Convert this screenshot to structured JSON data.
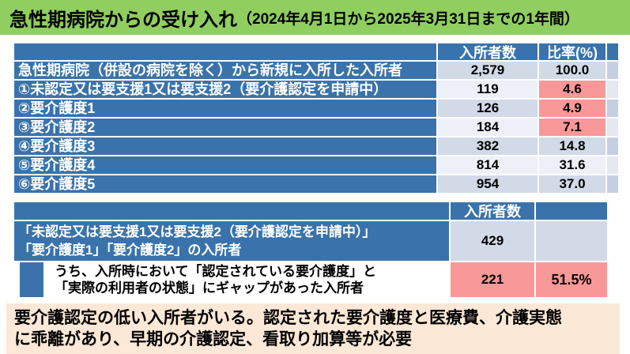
{
  "colors": {
    "green": "#8FCE5F",
    "blue": "#3A73AB",
    "pink": "#F99898",
    "band_dark": "#D2D9E7",
    "band_light": "#EDF0F6",
    "tail_dark": "#C6CFE1",
    "tail_light": "#E3E8F1",
    "peach": "#FCE8D6"
  },
  "title": {
    "main": "急性期病院からの受け入れ",
    "period": "（2024年4月1日から2025年3月31日までの1年間）"
  },
  "table1": {
    "headers": {
      "count": "入所者数",
      "ratio": "比率(%)"
    },
    "rows": [
      {
        "label": "急性期病院（併設の病院を除く）から新規に入所した入所者",
        "count": "2,579",
        "ratio": "100.0",
        "highlight": false
      },
      {
        "label": "①未認定又は要支援1又は要支援2（要介護認定を申請中）",
        "count": "119",
        "ratio": "4.6",
        "highlight": true
      },
      {
        "label": "②要介護度1",
        "count": "126",
        "ratio": "4.9",
        "highlight": true
      },
      {
        "label": "③要介護度2",
        "count": "184",
        "ratio": "7.1",
        "highlight": true
      },
      {
        "label": "④要介護度3",
        "count": "382",
        "ratio": "14.8",
        "highlight": false
      },
      {
        "label": "⑤要介護度4",
        "count": "814",
        "ratio": "31.6",
        "highlight": false
      },
      {
        "label": "⑥要介護度5",
        "count": "954",
        "ratio": "37.0",
        "highlight": false
      }
    ]
  },
  "table2": {
    "headers": {
      "count": "入所者数"
    },
    "rows": [
      {
        "label_line1": "「未認定又は要支援1又は要支援2（要介護認定を申請中）」",
        "label_line2": "「要介護度1」「要介護度2」の入所者",
        "count": "429",
        "ratio": "",
        "highlight": false
      },
      {
        "label_line1": "うち、入所時において「認定されている要介護度」と",
        "label_line2": "「実際の利用者の状態」にギャップがあった入所者",
        "count": "221",
        "ratio": "51.5%",
        "highlight": true
      }
    ]
  },
  "note": {
    "line1": "要介護認定の低い入所者がいる。認定された要介護度と医療費、介護実態",
    "line2": "に乖離があり、早期の介護認定、看取り加算等が必要"
  }
}
